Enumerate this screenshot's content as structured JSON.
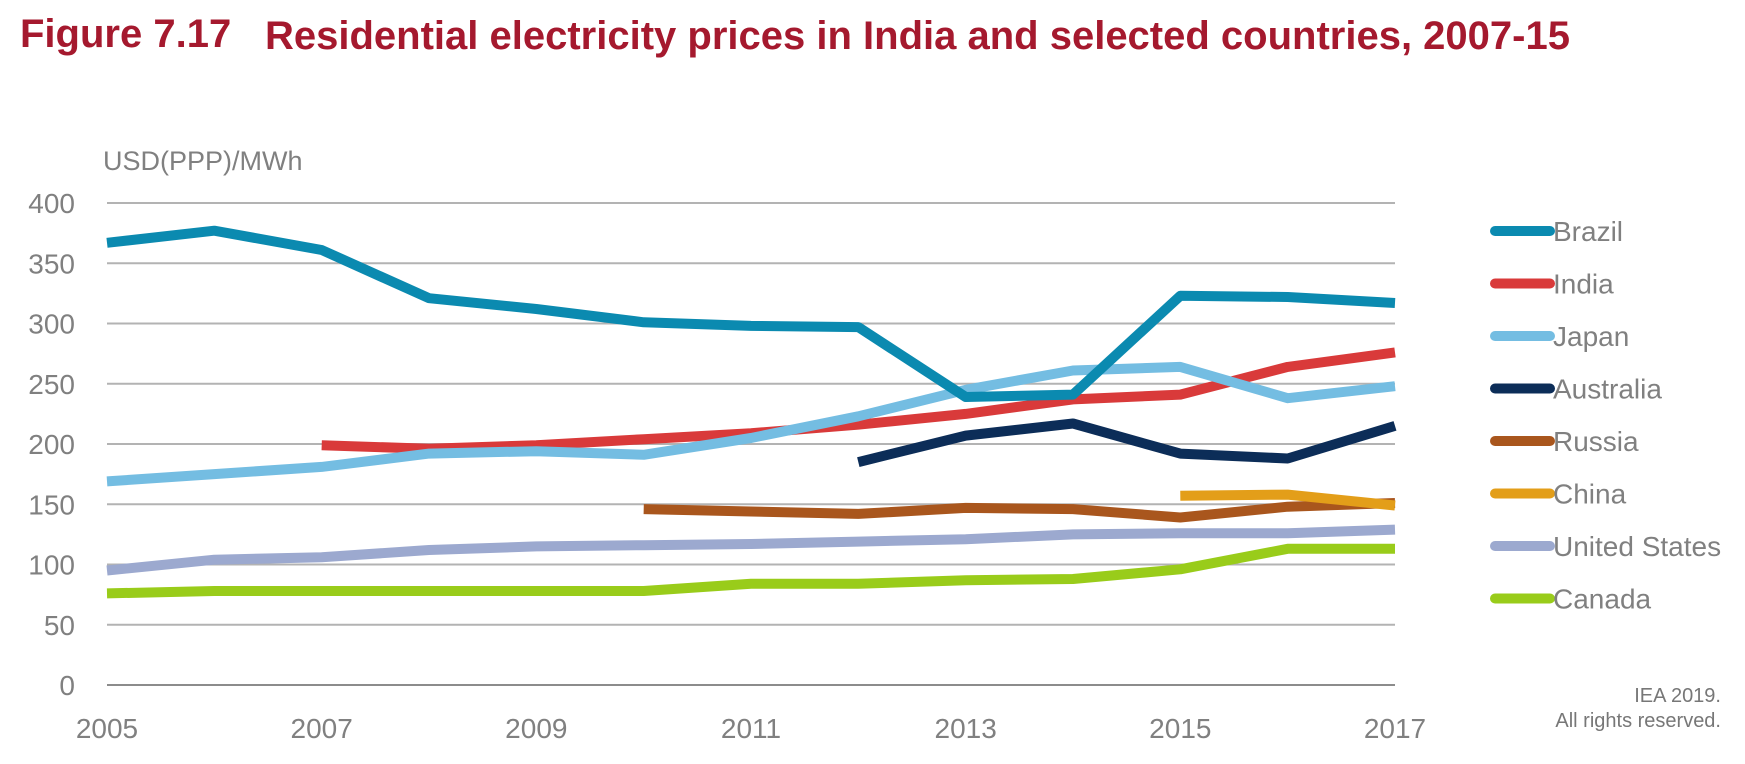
{
  "figure": {
    "number": "Figure 7.17",
    "title": "Residential electricity prices in India and selected countries, 2007-15"
  },
  "credit": {
    "line1": "IEA 2019.",
    "line2": "All rights reserved."
  },
  "chart_data": {
    "type": "line",
    "title": "Residential electricity prices in India and selected countries, 2007-15",
    "ylabel": "USD(PPP)/MWh",
    "xlabel": "",
    "xlim": [
      2005,
      2017
    ],
    "ylim": [
      0,
      400
    ],
    "x_ticks": [
      2005,
      2007,
      2009,
      2011,
      2013,
      2015,
      2017
    ],
    "y_ticks": [
      0,
      50,
      100,
      150,
      200,
      250,
      300,
      350,
      400
    ],
    "grid": "horizontal",
    "legend_position": "right",
    "series": [
      {
        "name": "Brazil",
        "color": "#0b8ab0",
        "x": [
          2005,
          2006,
          2007,
          2008,
          2009,
          2010,
          2011,
          2012,
          2013,
          2014,
          2015,
          2016,
          2017
        ],
        "y": [
          367,
          377,
          361,
          321,
          312,
          301,
          298,
          297,
          239,
          241,
          323,
          322,
          317
        ]
      },
      {
        "name": "India",
        "color": "#d93a3a",
        "x": [
          2007,
          2008,
          2009,
          2010,
          2011,
          2012,
          2013,
          2014,
          2015,
          2016,
          2017
        ],
        "y": [
          199,
          196,
          199,
          204,
          209,
          216,
          225,
          237,
          241,
          264,
          276
        ]
      },
      {
        "name": "Japan",
        "color": "#74bde2",
        "x": [
          2005,
          2006,
          2007,
          2008,
          2009,
          2010,
          2011,
          2012,
          2013,
          2014,
          2015,
          2016,
          2017
        ],
        "y": [
          169,
          175,
          181,
          192,
          194,
          191,
          205,
          223,
          245,
          261,
          264,
          238,
          248
        ]
      },
      {
        "name": "Australia",
        "color": "#0c2d58",
        "x": [
          2012,
          2013,
          2014,
          2015,
          2016,
          2017
        ],
        "y": [
          185,
          207,
          217,
          192,
          188,
          215
        ]
      },
      {
        "name": "Russia",
        "color": "#a9561d",
        "x": [
          2010,
          2011,
          2012,
          2013,
          2014,
          2015,
          2016,
          2017
        ],
        "y": [
          146,
          144,
          142,
          147,
          146,
          139,
          148,
          151
        ]
      },
      {
        "name": "China",
        "color": "#e39e19",
        "x": [
          2015,
          2016,
          2017
        ],
        "y": [
          157,
          158,
          149
        ]
      },
      {
        "name": "United States",
        "color": "#9ca9cf",
        "x": [
          2005,
          2006,
          2007,
          2008,
          2009,
          2010,
          2011,
          2012,
          2013,
          2014,
          2015,
          2016,
          2017
        ],
        "y": [
          95,
          104,
          106,
          112,
          115,
          116,
          117,
          119,
          121,
          125,
          126,
          126,
          129
        ]
      },
      {
        "name": "Canada",
        "color": "#99cc1a",
        "x": [
          2005,
          2006,
          2007,
          2008,
          2009,
          2010,
          2011,
          2012,
          2013,
          2014,
          2015,
          2016,
          2017
        ],
        "y": [
          76,
          78,
          78,
          78,
          78,
          78,
          84,
          84,
          87,
          88,
          96,
          113,
          113
        ]
      }
    ]
  }
}
